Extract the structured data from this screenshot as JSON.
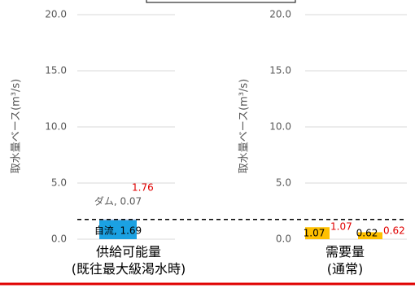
{
  "chart_data": [
    {
      "type": "stacked_bar",
      "y_label": "取水量ベース(m³/s)",
      "categories": [
        "供給可能量\n(既往最大級渇水時)"
      ],
      "series": [
        {
          "name": "自流",
          "color": "#1ba1e2",
          "values": [
            1.69
          ],
          "value_labels": [
            "自流, 1.69"
          ]
        },
        {
          "name": "ダム",
          "color": "#8faadc",
          "values": [
            0.07
          ],
          "value_labels": [
            "ダム, 0.07"
          ]
        }
      ],
      "totals": [
        1.76
      ],
      "total_color": "#e00000",
      "ylim": [
        0,
        20
      ],
      "yticks": [
        {
          "value": 0,
          "label": "0.0"
        },
        {
          "value": 5,
          "label": "5.0"
        },
        {
          "value": 10,
          "label": "10.0"
        },
        {
          "value": 15,
          "label": "15.0"
        },
        {
          "value": 20,
          "label": "20.0"
        }
      ],
      "grid": true
    },
    {
      "type": "bar",
      "y_label": "取水量ベース(m³/s)",
      "categories": [
        "需要量\n(通常)"
      ],
      "series": [
        {
          "color": "#ffc000",
          "values": [
            1.07
          ]
        },
        {
          "color": "#ffc000",
          "values": [
            0.62
          ]
        }
      ],
      "annotation_values": [
        1.07,
        0.62
      ],
      "annotation_color": "#e00000",
      "ylim": [
        0,
        20
      ],
      "yticks": [
        {
          "value": 0,
          "label": "0.0"
        },
        {
          "value": 5,
          "label": "5.0"
        },
        {
          "value": 10,
          "label": "10.0"
        },
        {
          "value": 15,
          "label": "15.0"
        },
        {
          "value": 20,
          "label": "20.0"
        }
      ],
      "grid": true
    }
  ]
}
